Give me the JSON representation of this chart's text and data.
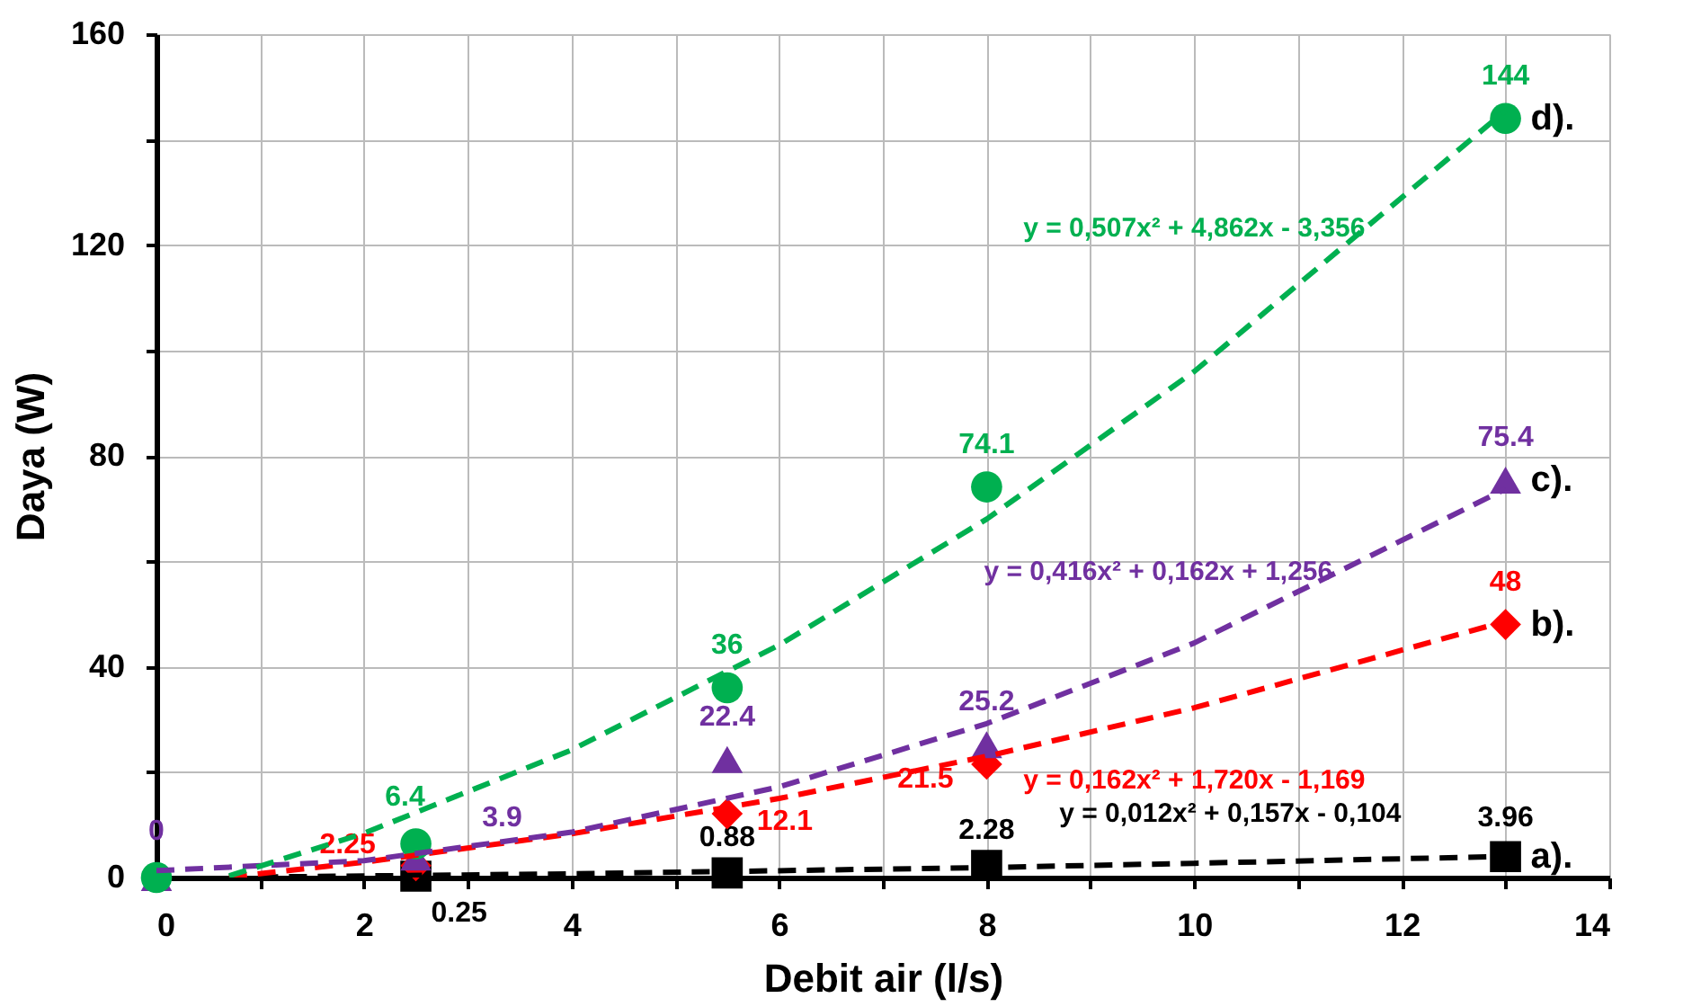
{
  "chart_data": {
    "type": "scatter",
    "xlabel": "Debit air (l/s)",
    "ylabel": "Daya (W)",
    "x": [
      0,
      2.5,
      5.5,
      8,
      13
    ],
    "xlim": [
      0,
      14
    ],
    "xticks": [
      0,
      {
        "value": 1,
        "label": null
      },
      2,
      {
        "value": 3,
        "label": null
      },
      4,
      {
        "value": 5,
        "label": null
      },
      6,
      {
        "value": 7,
        "label": null
      },
      8,
      {
        "value": 9,
        "label": null
      },
      10,
      {
        "value": 11,
        "label": null
      },
      12,
      {
        "value": 13,
        "label": null
      },
      14
    ],
    "ylim": [
      0,
      160
    ],
    "yticks": [
      0,
      {
        "value": 20,
        "label": null
      },
      40,
      {
        "value": 60,
        "label": null
      },
      80,
      {
        "value": 100,
        "label": null
      },
      120,
      {
        "value": 140,
        "label": null
      },
      160
    ],
    "grid": true,
    "legend": false,
    "series": [
      {
        "name": "a).",
        "color": "#000000",
        "marker": "square",
        "values": [
          null,
          0.25,
          0.88,
          2.28,
          3.96
        ],
        "value_labels": [
          null,
          "0.25",
          "0.88",
          "2.28",
          "3.96"
        ]
      },
      {
        "name": "b).",
        "color": "#ff0000",
        "marker": "diamond",
        "values": [
          null,
          2.25,
          12.1,
          21.5,
          48
        ],
        "value_labels": [
          null,
          "2.25",
          "12.1",
          "21.5",
          "48"
        ]
      },
      {
        "name": "c).",
        "color": "#7030a0",
        "marker": "triangle",
        "values": [
          0,
          3.9,
          22.4,
          25.2,
          75.4
        ],
        "value_labels": [
          "0",
          "3.9",
          "22.4",
          "25.2",
          "75.4"
        ]
      },
      {
        "name": "d).",
        "color": "#00b050",
        "marker": "circle",
        "values": [
          0,
          6.4,
          36,
          74.1,
          144
        ],
        "value_labels": [
          null,
          "6.4",
          "36",
          "74.1",
          "144"
        ]
      },
      {
        "type": "line",
        "line_style": "dashed",
        "marker": "none",
        "color": "#000000",
        "x": [
          1,
          2,
          4,
          6,
          8,
          10,
          13
        ],
        "values": [
          0.1,
          0.3,
          0.7,
          1.3,
          1.9,
          2.7,
          4.0
        ]
      },
      {
        "type": "line",
        "line_style": "dashed",
        "marker": "none",
        "color": "#ff0000",
        "x": [
          0.7,
          2,
          4,
          6,
          8,
          10,
          13
        ],
        "values": [
          0.1,
          2.9,
          8.3,
          15.0,
          23.0,
          32.2,
          48.6
        ]
      },
      {
        "type": "line",
        "line_style": "dashed",
        "marker": "none",
        "color": "#7030a0",
        "x": [
          0,
          2,
          4,
          6,
          8,
          10,
          13
        ],
        "values": [
          1.3,
          3.2,
          8.6,
          17.2,
          29.2,
          44.5,
          73.7
        ]
      },
      {
        "type": "line",
        "line_style": "dashed",
        "marker": "none",
        "color": "#00b050",
        "x": [
          0.7,
          2,
          4,
          6,
          8,
          10,
          13
        ],
        "values": [
          0.3,
          8.4,
          24.2,
          44.1,
          68.0,
          96.0,
          145.5
        ]
      }
    ],
    "annotations": [
      "y = 0,012x² + 0,157x - 0,104",
      "y = 0,162x² + 1,720x - 1,169",
      "y = 0,416x² + 0,162x + 1,256",
      "y = 0,507x² + 4,862x - 3,356"
    ]
  }
}
